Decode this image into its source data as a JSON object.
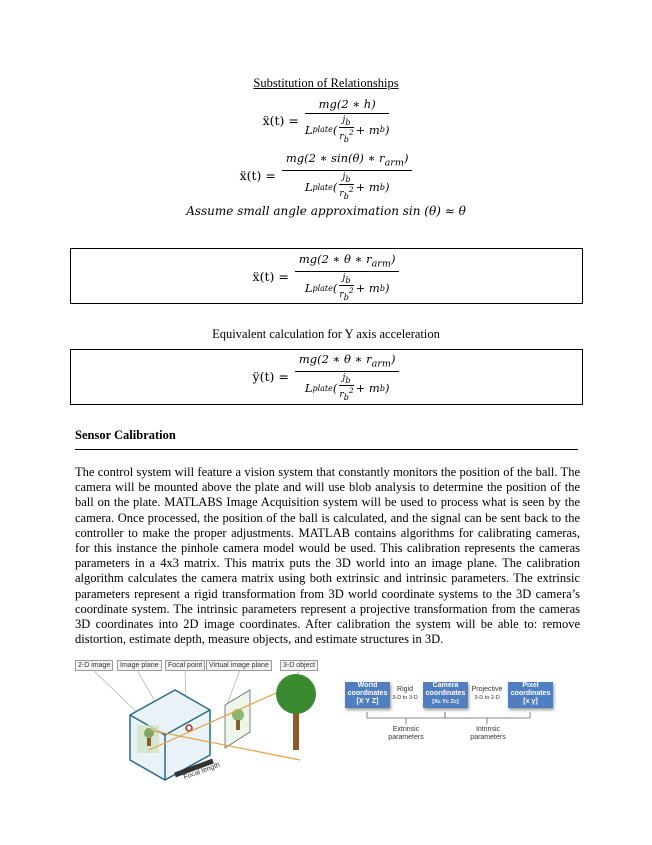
{
  "heading": "Substitution of Relationships",
  "eq1": {
    "lhs": "ẍ(t) =",
    "num": "mg(2 ∗ h)"
  },
  "eq2": {
    "lhs": "ẍ(t) =",
    "num": "mg(2 ∗ sin(θ) ∗ r",
    "num_sub": "arm",
    "num_end": ")"
  },
  "den": {
    "pre": "L",
    "pre_sub": "plate",
    "open": "(",
    "j": "j",
    "j_sub": "b",
    "r": "r",
    "r_sub": "b",
    "r_sup": "2",
    "plus": " + m",
    "m_sub": "b",
    "close": ")"
  },
  "assume": "Assume small angle approximation sin (θ) ≈ θ",
  "eq3": {
    "lhs": "ẍ(t) =",
    "num": "mg(2 ∗ θ ∗ r",
    "num_sub": "arm",
    "num_end": ")"
  },
  "equiv": "Equivalent calculation for Y axis acceleration",
  "eq4": {
    "lhs": "ÿ(t) =",
    "num": "mg(2 ∗ θ ∗ r",
    "num_sub": "arm",
    "num_end": ")"
  },
  "section_title": "Sensor Calibration",
  "paragraph": "The control system will feature a vision system that constantly monitors the position of the ball. The camera will be mounted above the plate and will use blob analysis to determine the position of the ball on the plate. MATLABS Image Acquisition system will be used to process what is seen by the camera. Once processed, the position of the ball is calculated, and the signal can be sent back to the controller to make the proper adjustments. MATLAB contains algorithms for calibrating cameras, for this instance the pinhole camera model would be used. This calibration represents the cameras parameters in a 4x3 matrix. This matrix puts the 3D world into an image plane. The calibration algorithm calculates the camera matrix using both extrinsic and intrinsic parameters. The extrinsic parameters represent a rigid transformation from 3D world coordinate systems to the 3D camera’s coordinate system. The intrinsic parameters represent a projective transformation from the cameras 3D coordinates into 2D image coordinates. After calibration the system will be able to: remove distortion, estimate depth, measure objects, and estimate structures in 3D.",
  "fig1": {
    "labels": [
      "2-D image",
      "Image plane",
      "Focal point",
      "Virtual image plane",
      "3-D object"
    ],
    "focal_length": "Focal length"
  },
  "fig2": {
    "world": [
      "World",
      "coordinates",
      "[X Y Z]"
    ],
    "camera": [
      "Camera",
      "coordinates",
      "[Xc Yc Zc]"
    ],
    "pixel": [
      "Pixel",
      "coordinates",
      "[x y]"
    ],
    "rigid": [
      "Rigid",
      "3-D to 3-D"
    ],
    "projective": [
      "Projective",
      "3-D to 2-D"
    ],
    "extrinsic": [
      "Extrinsic",
      "parameters"
    ],
    "intrinsic": [
      "Intrinsic",
      "parameters"
    ]
  }
}
